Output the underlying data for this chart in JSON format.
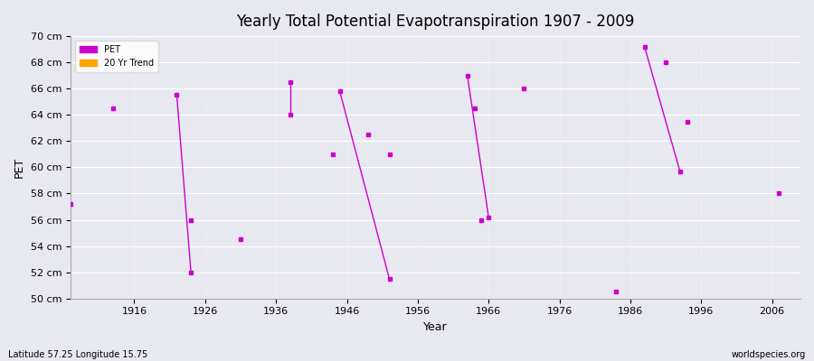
{
  "title": "Yearly Total Potential Evapotranspiration 1907 - 2009",
  "xlabel": "Year",
  "ylabel": "PET",
  "subtitle_left": "Latitude 57.25 Longitude 15.75",
  "subtitle_right": "worldspecies.org",
  "xlim": [
    1907,
    2010
  ],
  "ylim": [
    50,
    70
  ],
  "yticks": [
    50,
    52,
    54,
    56,
    58,
    60,
    62,
    64,
    66,
    68,
    70
  ],
  "ytick_labels": [
    "50 cm",
    "52 cm",
    "54 cm",
    "56 cm",
    "58 cm",
    "60 cm",
    "62 cm",
    "64 cm",
    "66 cm",
    "68 cm",
    "70 cm"
  ],
  "xticks": [
    1916,
    1926,
    1936,
    1946,
    1956,
    1966,
    1976,
    1986,
    1996,
    2006
  ],
  "background_color": "#e8e8f0",
  "plot_bg_color": "#e8e8f0",
  "grid_color": "#ffffff",
  "pet_color": "#cc00cc",
  "trend_color": "#ffa500",
  "pet_points": [
    [
      1907,
      57.2
    ],
    [
      1913,
      64.5
    ],
    [
      1922,
      65.5
    ],
    [
      1924,
      56.0
    ],
    [
      1924,
      52.0
    ],
    [
      1931,
      54.5
    ],
    [
      1938,
      66.5
    ],
    [
      1938,
      64.0
    ],
    [
      1944,
      61.0
    ],
    [
      1945,
      65.8
    ],
    [
      1949,
      62.5
    ],
    [
      1952,
      61.0
    ],
    [
      1952,
      51.5
    ],
    [
      1963,
      67.0
    ],
    [
      1964,
      64.5
    ],
    [
      1965,
      56.0
    ],
    [
      1966,
      56.2
    ],
    [
      1971,
      66.0
    ],
    [
      1984,
      50.5
    ],
    [
      1988,
      69.2
    ],
    [
      1991,
      68.0
    ],
    [
      1993,
      59.7
    ],
    [
      1994,
      63.5
    ],
    [
      2007,
      58.0
    ]
  ],
  "line_segments": [
    [
      [
        1922,
        65.5
      ],
      [
        1924,
        52.0
      ]
    ],
    [
      [
        1938,
        66.5
      ],
      [
        1938,
        64.0
      ]
    ],
    [
      [
        1945,
        65.8
      ],
      [
        1952,
        51.5
      ]
    ],
    [
      [
        1963,
        67.0
      ],
      [
        1966,
        56.2
      ]
    ],
    [
      [
        1988,
        69.2
      ],
      [
        1993,
        59.7
      ]
    ]
  ]
}
